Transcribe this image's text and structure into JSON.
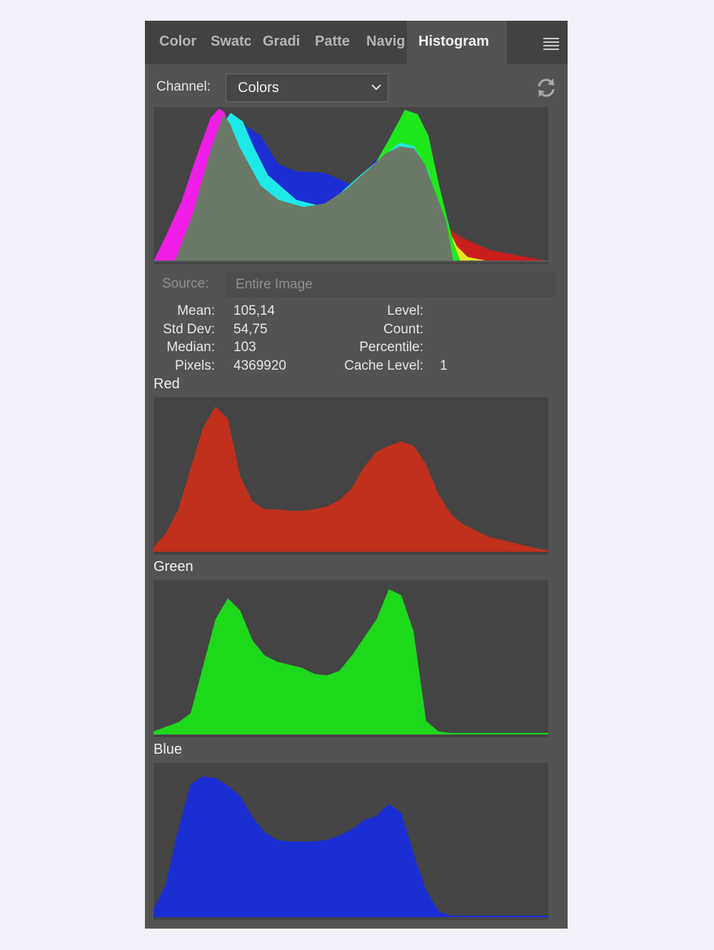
{
  "tabs": [
    {
      "label": "Color",
      "active": false
    },
    {
      "label": "Swatc",
      "active": false
    },
    {
      "label": "Gradi",
      "active": false
    },
    {
      "label": "Patte",
      "active": false
    },
    {
      "label": "Navig",
      "active": false
    },
    {
      "label": "Histogram",
      "active": true
    }
  ],
  "panel_menu_icon": "hamburger-menu-icon",
  "channel": {
    "label": "Channel:",
    "value": "Colors"
  },
  "refresh_icon": "refresh-icon",
  "source": {
    "label": "Source:",
    "value": "Entire Image"
  },
  "stats": {
    "mean_label": "Mean:",
    "mean": "105,14",
    "stddev_label": "Std Dev:",
    "stddev": "54,75",
    "median_label": "Median:",
    "median": "103",
    "pixels_label": "Pixels:",
    "pixels": "4369920",
    "level_label": "Level:",
    "count_label": "Count:",
    "percentile_label": "Percentile:",
    "cache_level_label": "Cache Level:",
    "cache_level": "1"
  },
  "channels": {
    "red": "Red",
    "green": "Green",
    "blue": "Blue"
  },
  "colors": {
    "red": "#c0301c",
    "green": "#1ed81c",
    "blue": "#1b2ed3",
    "overlap": "#6b7a66",
    "cyan": "#1ee8e8",
    "magenta": "#f01ee6",
    "yellow": "#e8e81c"
  },
  "chart_data": [
    {
      "type": "area",
      "name": "red-histogram",
      "x": [
        0,
        8,
        16,
        24,
        32,
        40,
        48,
        56,
        64,
        72,
        80,
        88,
        96,
        104,
        112,
        120,
        128,
        136,
        144,
        152,
        160,
        168,
        176,
        184,
        192,
        200,
        208,
        216,
        224,
        232,
        240,
        248,
        255
      ],
      "values": [
        3,
        12,
        28,
        55,
        82,
        96,
        88,
        50,
        33,
        28,
        28,
        27,
        27,
        28,
        30,
        34,
        42,
        56,
        66,
        70,
        73,
        70,
        58,
        38,
        25,
        18,
        14,
        10,
        8,
        6,
        4,
        2,
        1
      ]
    },
    {
      "type": "area",
      "name": "green-histogram",
      "x": [
        0,
        8,
        16,
        24,
        32,
        40,
        48,
        56,
        64,
        72,
        80,
        88,
        96,
        104,
        112,
        120,
        128,
        136,
        144,
        152,
        160,
        168,
        176,
        184,
        192,
        200,
        208,
        216,
        224,
        232,
        240,
        248,
        255
      ],
      "values": [
        2,
        5,
        8,
        14,
        45,
        76,
        90,
        82,
        62,
        52,
        48,
        46,
        44,
        40,
        39,
        42,
        52,
        64,
        76,
        96,
        92,
        68,
        9,
        2,
        1,
        1,
        1,
        1,
        1,
        1,
        1,
        1,
        1
      ]
    },
    {
      "type": "area",
      "name": "blue-histogram",
      "x": [
        0,
        8,
        16,
        24,
        32,
        40,
        48,
        56,
        64,
        72,
        80,
        88,
        96,
        104,
        112,
        120,
        128,
        136,
        144,
        152,
        160,
        168,
        176,
        184,
        192,
        200,
        208,
        216,
        224,
        232,
        240,
        248,
        255
      ],
      "values": [
        5,
        22,
        58,
        88,
        93,
        92,
        87,
        80,
        66,
        56,
        51,
        50,
        50,
        50,
        51,
        54,
        58,
        64,
        67,
        75,
        69,
        42,
        18,
        4,
        1,
        1,
        1,
        1,
        1,
        1,
        1,
        1,
        1
      ]
    }
  ]
}
